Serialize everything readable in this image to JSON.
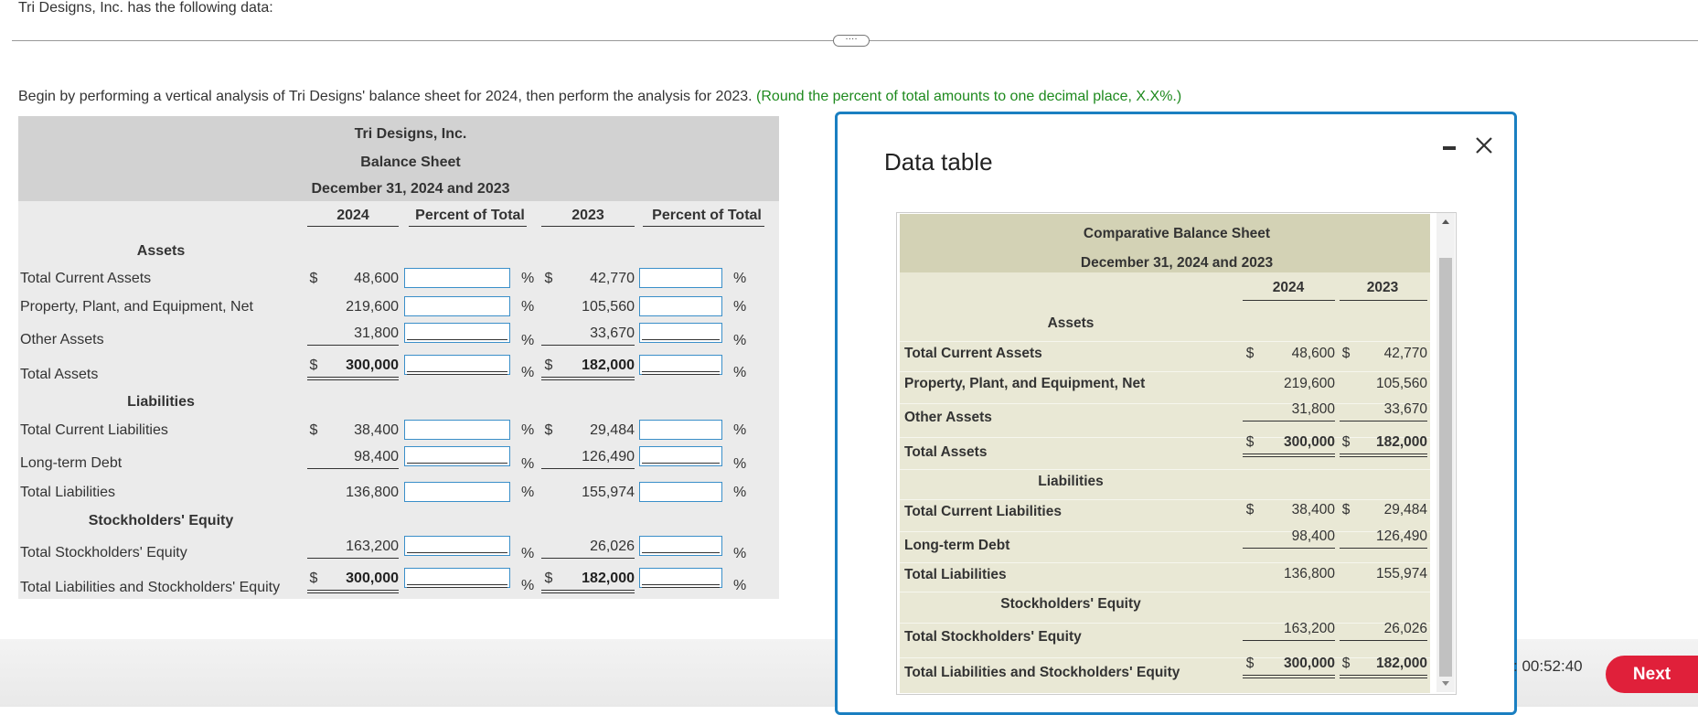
{
  "header": {
    "intro": "Tri Designs, Inc. has the following data:"
  },
  "instructions": {
    "text": "Begin by performing a vertical analysis of Tri Designs' balance sheet for 2024, then perform the analysis for 2023.",
    "hint": "(Round the percent of total amounts to one decimal place, X.X%.)"
  },
  "worksheet": {
    "title": "Tri Designs, Inc.",
    "subtitle": "Balance Sheet",
    "date": "December 31, 2024 and 2023",
    "columns": [
      "2024",
      "Percent of Total",
      "2023",
      "Percent of Total"
    ],
    "currency": "$",
    "percent": "%",
    "rows": [
      {
        "section": "Assets"
      },
      {
        "label": "Total Current Assets",
        "y2024": "48,600",
        "y2023": "42,770",
        "dollar": true
      },
      {
        "label": "Property, Plant, and Equipment, Net",
        "y2024": "219,600",
        "y2023": "105,560"
      },
      {
        "label": "Other Assets",
        "y2024": "31,800",
        "y2023": "33,670",
        "rule": "single"
      },
      {
        "label": "Total Assets",
        "y2024": "300,000",
        "y2023": "182,000",
        "dollar": true,
        "rule": "double"
      },
      {
        "section": "Liabilities"
      },
      {
        "label": "Total Current Liabilities",
        "y2024": "38,400",
        "y2023": "29,484",
        "dollar": true
      },
      {
        "label": "Long-term Debt",
        "y2024": "98,400",
        "y2023": "126,490",
        "rule": "single"
      },
      {
        "label": "Total Liabilities",
        "y2024": "136,800",
        "y2023": "155,974"
      },
      {
        "section": "Stockholders' Equity"
      },
      {
        "label": "Total Stockholders' Equity",
        "y2024": "163,200",
        "y2023": "26,026",
        "rule": "single"
      },
      {
        "label": "Total Liabilities and Stockholders' Equity",
        "y2024": "300,000",
        "y2023": "182,000",
        "dollar": true,
        "rule": "double"
      }
    ]
  },
  "data_table": {
    "window_title": "Data table",
    "title": "Comparative Balance Sheet",
    "date": "December 31, 2024 and 2023",
    "columns": [
      "2024",
      "2023"
    ],
    "currency": "$",
    "rows": [
      {
        "section": "Assets"
      },
      {
        "label": "Total Current Assets",
        "y2024": "48,600",
        "y2023": "42,770",
        "dollar": true
      },
      {
        "label": "Property, Plant, and Equipment, Net",
        "y2024": "219,600",
        "y2023": "105,560"
      },
      {
        "label": "Other Assets",
        "y2024": "31,800",
        "y2023": "33,670",
        "rule": "single"
      },
      {
        "label": "Total Assets",
        "y2024": "300,000",
        "y2023": "182,000",
        "dollar": true,
        "rule": "double"
      },
      {
        "section": "Liabilities"
      },
      {
        "label": "Total Current Liabilities",
        "y2024": "38,400",
        "y2023": "29,484",
        "dollar": true
      },
      {
        "label": "Long-term Debt",
        "y2024": "98,400",
        "y2023": "126,490",
        "rule": "single"
      },
      {
        "label": "Total Liabilities",
        "y2024": "136,800",
        "y2023": "155,974"
      },
      {
        "section": "Stockholders' Equity"
      },
      {
        "label": "Total Stockholders' Equity",
        "y2024": "163,200",
        "y2023": "26,026",
        "rule": "single"
      },
      {
        "label": "Total Liabilities and Stockholders' Equity",
        "y2024": "300,000",
        "y2023": "182,000",
        "dollar": true,
        "rule": "double"
      }
    ]
  },
  "footer": {
    "timer": ": 00:52:40",
    "next": "Next"
  }
}
